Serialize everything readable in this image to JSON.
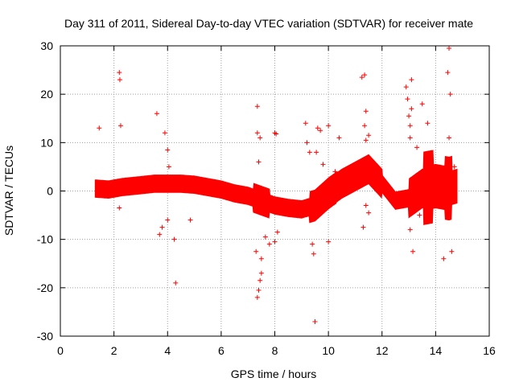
{
  "chart_data": {
    "type": "scatter",
    "title": "Day 311 of 2011, Sidereal Day-to-day VTEC variation (SDTVAR) for receiver mate",
    "xlabel": "GPS time / hours",
    "ylabel": "SDTVAR / TECUs",
    "xlim": [
      0,
      16
    ],
    "ylim": [
      -30,
      30
    ],
    "xticks": [
      0,
      2,
      4,
      6,
      8,
      10,
      12,
      14,
      16
    ],
    "yticks": [
      -30,
      -20,
      -10,
      0,
      10,
      20,
      30
    ],
    "grid": true,
    "marker": "+",
    "color": "#ff0000",
    "series": [
      {
        "name": "SDTVAR",
        "trend": [
          [
            1.3,
            0.5
          ],
          [
            1.8,
            0.3
          ],
          [
            2.3,
            0.8
          ],
          [
            3.0,
            1.2
          ],
          [
            3.5,
            1.5
          ],
          [
            4.0,
            1.5
          ],
          [
            4.5,
            1.5
          ],
          [
            5.0,
            1.3
          ],
          [
            5.5,
            0.8
          ],
          [
            6.0,
            0.3
          ],
          [
            6.5,
            -0.5
          ],
          [
            7.0,
            -1.0
          ],
          [
            7.5,
            -2.0
          ],
          [
            8.0,
            -3.0
          ],
          [
            8.5,
            -3.5
          ],
          [
            9.0,
            -3.8
          ],
          [
            9.5,
            -3.0
          ],
          [
            10.0,
            -0.5
          ],
          [
            10.5,
            1.5
          ],
          [
            11.0,
            3.0
          ],
          [
            11.5,
            4.5
          ],
          [
            12.0,
            1.5
          ],
          [
            12.5,
            -2.0
          ],
          [
            13.0,
            -1.5
          ],
          [
            13.5,
            0.5
          ],
          [
            14.0,
            1.0
          ],
          [
            14.5,
            0.5
          ],
          [
            14.8,
            1.0
          ]
        ],
        "outliers": [
          [
            1.45,
            13.0
          ],
          [
            2.2,
            24.5
          ],
          [
            2.22,
            23.0
          ],
          [
            2.25,
            13.5
          ],
          [
            2.2,
            -3.5
          ],
          [
            3.6,
            16.0
          ],
          [
            3.9,
            12.0
          ],
          [
            4.0,
            8.5
          ],
          [
            4.05,
            5.0
          ],
          [
            3.7,
            -9.0
          ],
          [
            3.8,
            -7.5
          ],
          [
            4.0,
            -6.0
          ],
          [
            4.25,
            -10.0
          ],
          [
            4.3,
            -19.0
          ],
          [
            4.85,
            -6.0
          ],
          [
            7.35,
            17.5
          ],
          [
            7.35,
            12.0
          ],
          [
            7.45,
            11.0
          ],
          [
            7.4,
            6.0
          ],
          [
            7.3,
            -12.5
          ],
          [
            7.35,
            -22.0
          ],
          [
            7.4,
            -20.5
          ],
          [
            7.45,
            -18.5
          ],
          [
            7.5,
            -17.0
          ],
          [
            7.5,
            -14.0
          ],
          [
            7.65,
            -9.5
          ],
          [
            7.8,
            -11.0
          ],
          [
            8.0,
            12.0
          ],
          [
            8.05,
            11.8
          ],
          [
            8.0,
            -10.5
          ],
          [
            8.1,
            -8.5
          ],
          [
            9.15,
            14.0
          ],
          [
            9.2,
            10.0
          ],
          [
            9.3,
            8.0
          ],
          [
            9.4,
            -11.0
          ],
          [
            9.45,
            -13.0
          ],
          [
            9.5,
            -27.0
          ],
          [
            9.6,
            13.0
          ],
          [
            9.55,
            8.0
          ],
          [
            9.7,
            12.5
          ],
          [
            9.8,
            5.5
          ],
          [
            10.0,
            13.5
          ],
          [
            10.0,
            -10.5
          ],
          [
            10.25,
            4.0
          ],
          [
            10.4,
            11.0
          ],
          [
            11.25,
            23.5
          ],
          [
            11.35,
            24.0
          ],
          [
            11.4,
            16.5
          ],
          [
            11.35,
            13.5
          ],
          [
            11.4,
            10.5
          ],
          [
            11.3,
            -7.5
          ],
          [
            11.4,
            -3.0
          ],
          [
            11.5,
            -4.5
          ],
          [
            11.5,
            11.5
          ],
          [
            12.9,
            21.5
          ],
          [
            12.95,
            19.0
          ],
          [
            13.0,
            15.5
          ],
          [
            13.05,
            13.5
          ],
          [
            13.1,
            23.0
          ],
          [
            13.1,
            17.0
          ],
          [
            13.05,
            -8.0
          ],
          [
            13.15,
            -12.5
          ],
          [
            13.05,
            11.0
          ],
          [
            13.5,
            18.0
          ],
          [
            13.7,
            14.0
          ],
          [
            14.3,
            -14.0
          ],
          [
            14.45,
            24.5
          ],
          [
            14.5,
            29.5
          ],
          [
            14.55,
            20.0
          ],
          [
            14.6,
            -12.5
          ],
          [
            14.5,
            11.0
          ],
          [
            14.7,
            5.0
          ],
          [
            13.8,
            -4.5
          ],
          [
            13.4,
            -5.0
          ],
          [
            13.3,
            9.0
          ]
        ]
      }
    ]
  }
}
